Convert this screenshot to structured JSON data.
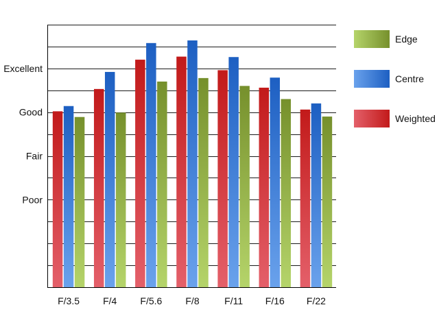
{
  "chart_data": {
    "type": "bar",
    "categories": [
      "F/3.5",
      "F/4",
      "F/5.6",
      "F/8",
      "F/11",
      "F/16",
      "F/22"
    ],
    "series": [
      {
        "name": "Weighted",
        "values": [
          3.02,
          3.53,
          4.2,
          4.27,
          3.96,
          3.56,
          3.06
        ]
      },
      {
        "name": "Centre",
        "values": [
          3.14,
          3.92,
          4.58,
          4.64,
          4.26,
          3.79,
          3.2
        ]
      },
      {
        "name": "Edge",
        "values": [
          2.89,
          2.99,
          3.7,
          3.78,
          3.6,
          3.3,
          2.9
        ]
      }
    ],
    "y_tick_labels": [
      {
        "value": 1,
        "label": "Poor"
      },
      {
        "value": 2,
        "label": "Fair"
      },
      {
        "value": 3,
        "label": "Good"
      },
      {
        "value": 4,
        "label": "Excellent"
      }
    ],
    "ylim": [
      -1,
      5
    ],
    "legend_order": [
      "Edge",
      "Centre",
      "Weighted"
    ],
    "legend_position": "top-right",
    "grid": true,
    "colors": {
      "Weighted": {
        "dark": "#c21a1a",
        "light": "#e4606a"
      },
      "Centre": {
        "dark": "#1d5fc2",
        "light": "#6aa2ec"
      },
      "Edge": {
        "dark": "#76902c",
        "light": "#b5d46a"
      }
    }
  }
}
